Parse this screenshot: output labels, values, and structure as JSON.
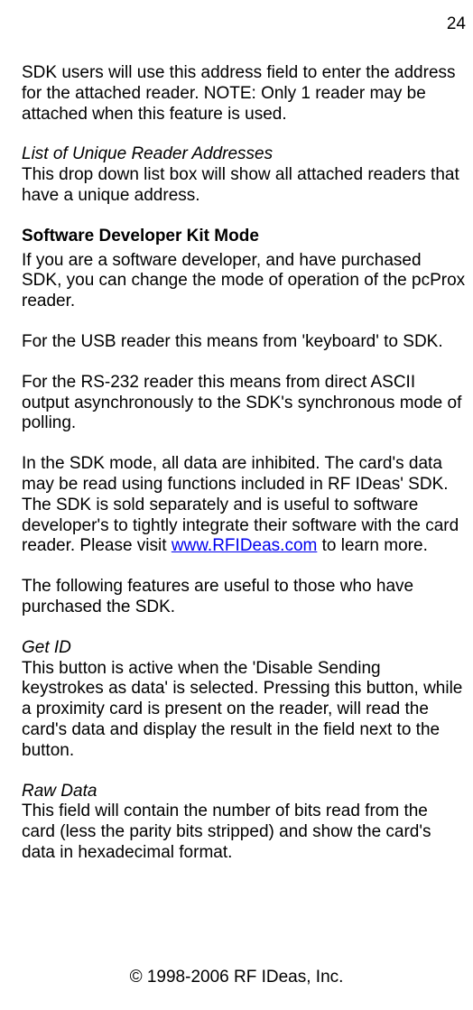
{
  "page_number": "24",
  "intro_para": "SDK users will use this address field to enter the address for the attached reader.  NOTE: Only 1 reader may be attached when this feature is used.",
  "list_heading": "List of Unique Reader Addresses",
  "list_body": "This drop down list box will show all attached readers that have a unique address.",
  "sdk_heading": "Software Developer Kit Mode",
  "sdk_p1": "If you are a software developer, and have purchased SDK, you can change the mode of operation of the pcProx reader.",
  "sdk_p2": "For the USB reader this means from 'keyboard' to SDK.",
  "sdk_p3": "For the RS-232 reader this means from direct ASCII output asynchronously to the SDK's synchronous mode of polling.",
  "sdk_p4_pre": "In the SDK mode, all data are inhibited.  The card's data may be read using functions included in RF IDeas' SDK.  The SDK is sold separately and is useful to software developer's to tightly integrate their software with the card reader.  Please visit ",
  "sdk_link_text": "www.RFIDeas.com",
  "sdk_link_href": "http://www.RFIDeas.com",
  "sdk_p4_post": " to learn more.",
  "sdk_p5": "The following features are useful to those who have purchased the SDK.",
  "getid_heading": "Get ID",
  "getid_body": "This button is active when the 'Disable Sending keystrokes as data' is selected.  Pressing this button, while a proximity card is present on the reader, will read the card's data and display the result in the field next to the button.",
  "raw_heading": "Raw Data",
  "raw_body": "This field will contain the number of bits read from the card (less the parity bits stripped) and show the card's data in hexadecimal format.",
  "footer": "© 1998-2006 RF IDeas, Inc."
}
